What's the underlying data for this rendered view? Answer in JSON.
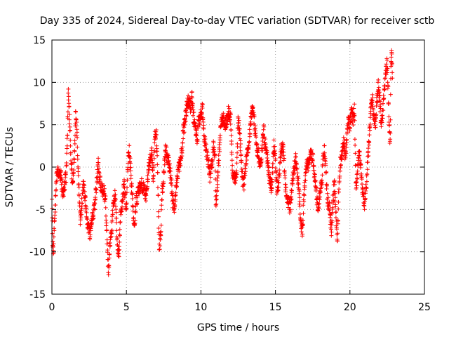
{
  "chart_data": {
    "type": "scatter",
    "title": "Day 335 of 2024, Sidereal Day-to-day VTEC variation (SDTVAR) for receiver sctb",
    "xlabel": "GPS time / hours",
    "ylabel": "SDTVAR / TECUs",
    "xlim": [
      0,
      25
    ],
    "ylim": [
      -15,
      15
    ],
    "xticks": [
      0,
      5,
      10,
      15,
      20,
      25
    ],
    "yticks": [
      -15,
      -10,
      -5,
      0,
      5,
      10,
      15
    ],
    "xtick_labels": [
      "0",
      "5",
      "10",
      "15",
      "20",
      "25"
    ],
    "ytick_labels": [
      "-15",
      "-10",
      "-5",
      "0",
      "5",
      "10",
      "15"
    ],
    "grid": true,
    "marker": "plus",
    "series": [
      {
        "name": "SDTVAR",
        "color": "#ff0000",
        "trace": [
          [
            0.0,
            -3.0
          ],
          [
            0.05,
            -9.0
          ],
          [
            0.1,
            -9.8
          ],
          [
            0.2,
            -5.5
          ],
          [
            0.3,
            -1.5
          ],
          [
            0.45,
            -0.5
          ],
          [
            0.6,
            -1.0
          ],
          [
            0.75,
            -3.5
          ],
          [
            0.85,
            -2.0
          ],
          [
            0.95,
            -1.0
          ],
          [
            1.05,
            4.5
          ],
          [
            1.1,
            8.8
          ],
          [
            1.2,
            5.0
          ],
          [
            1.3,
            0.0
          ],
          [
            1.4,
            -1.8
          ],
          [
            1.5,
            1.0
          ],
          [
            1.6,
            6.5
          ],
          [
            1.7,
            3.0
          ],
          [
            1.8,
            -2.0
          ],
          [
            1.9,
            -6.5
          ],
          [
            2.0,
            -4.5
          ],
          [
            2.1,
            -2.0
          ],
          [
            2.25,
            -4.0
          ],
          [
            2.4,
            -7.0
          ],
          [
            2.55,
            -7.8
          ],
          [
            2.7,
            -6.0
          ],
          [
            2.85,
            -5.0
          ],
          [
            3.0,
            -2.0
          ],
          [
            3.1,
            0.5
          ],
          [
            3.2,
            -1.5
          ],
          [
            3.35,
            -2.5
          ],
          [
            3.5,
            -3.0
          ],
          [
            3.6,
            -4.0
          ],
          [
            3.75,
            -11.0
          ],
          [
            3.8,
            -12.0
          ],
          [
            3.9,
            -9.0
          ],
          [
            4.0,
            -7.5
          ],
          [
            4.1,
            -5.0
          ],
          [
            4.25,
            -3.0
          ],
          [
            4.4,
            -9.5
          ],
          [
            4.5,
            -10.5
          ],
          [
            4.6,
            -6.0
          ],
          [
            4.75,
            -3.5
          ],
          [
            4.85,
            -2.0
          ],
          [
            5.0,
            -5.0
          ],
          [
            5.1,
            0.5
          ],
          [
            5.2,
            2.0
          ],
          [
            5.3,
            -1.0
          ],
          [
            5.45,
            -5.5
          ],
          [
            5.55,
            -7.0
          ],
          [
            5.65,
            -4.0
          ],
          [
            5.8,
            -3.0
          ],
          [
            6.0,
            -2.0
          ],
          [
            6.2,
            -2.5
          ],
          [
            6.3,
            -3.5
          ],
          [
            6.4,
            -1.5
          ],
          [
            6.55,
            0.5
          ],
          [
            6.7,
            1.5
          ],
          [
            6.8,
            -2.0
          ],
          [
            6.9,
            3.5
          ],
          [
            7.0,
            4.0
          ],
          [
            7.1,
            -1.0
          ],
          [
            7.2,
            -9.5
          ],
          [
            7.3,
            -8.0
          ],
          [
            7.4,
            -3.0
          ],
          [
            7.5,
            -1.0
          ],
          [
            7.6,
            2.0
          ],
          [
            7.7,
            1.5
          ],
          [
            7.85,
            0.5
          ],
          [
            8.0,
            -1.5
          ],
          [
            8.1,
            -4.0
          ],
          [
            8.2,
            -5.0
          ],
          [
            8.35,
            -2.0
          ],
          [
            8.5,
            0.0
          ],
          [
            8.6,
            0.5
          ],
          [
            8.7,
            1.5
          ],
          [
            8.8,
            4.0
          ],
          [
            8.9,
            5.0
          ],
          [
            9.0,
            6.5
          ],
          [
            9.1,
            7.5
          ],
          [
            9.2,
            8.0
          ],
          [
            9.3,
            7.0
          ],
          [
            9.4,
            8.2
          ],
          [
            9.5,
            6.0
          ],
          [
            9.6,
            4.5
          ],
          [
            9.75,
            3.5
          ],
          [
            9.85,
            5.5
          ],
          [
            10.0,
            6.0
          ],
          [
            10.1,
            7.0
          ],
          [
            10.2,
            4.0
          ],
          [
            10.3,
            2.5
          ],
          [
            10.45,
            1.0
          ],
          [
            10.6,
            -1.0
          ],
          [
            10.75,
            0.5
          ],
          [
            10.85,
            3.0
          ],
          [
            10.95,
            1.0
          ],
          [
            11.0,
            -4.5
          ],
          [
            11.1,
            -2.0
          ],
          [
            11.2,
            1.0
          ],
          [
            11.35,
            5.5
          ],
          [
            11.5,
            6.0
          ],
          [
            11.6,
            5.0
          ],
          [
            11.75,
            5.5
          ],
          [
            11.85,
            6.5
          ],
          [
            12.0,
            5.5
          ],
          [
            12.1,
            -0.5
          ],
          [
            12.25,
            -1.5
          ],
          [
            12.4,
            -0.5
          ],
          [
            12.5,
            6.0
          ],
          [
            12.6,
            4.0
          ],
          [
            12.7,
            1.0
          ],
          [
            12.8,
            -1.5
          ],
          [
            12.9,
            -2.0
          ],
          [
            13.0,
            0.5
          ],
          [
            13.1,
            1.5
          ],
          [
            13.25,
            3.5
          ],
          [
            13.4,
            6.5
          ],
          [
            13.5,
            7.0
          ],
          [
            13.6,
            5.0
          ],
          [
            13.75,
            2.5
          ],
          [
            13.9,
            1.0
          ],
          [
            14.0,
            0.0
          ],
          [
            14.1,
            2.0
          ],
          [
            14.2,
            4.5
          ],
          [
            14.3,
            3.0
          ],
          [
            14.45,
            1.0
          ],
          [
            14.6,
            -1.5
          ],
          [
            14.75,
            -2.5
          ],
          [
            14.9,
            2.5
          ],
          [
            15.0,
            1.0
          ],
          [
            15.1,
            -2.5
          ],
          [
            15.2,
            -2.0
          ],
          [
            15.35,
            1.5
          ],
          [
            15.5,
            3.0
          ],
          [
            15.6,
            0.0
          ],
          [
            15.7,
            -3.0
          ],
          [
            15.85,
            -4.0
          ],
          [
            16.0,
            -5.0
          ],
          [
            16.1,
            -2.5
          ],
          [
            16.2,
            -1.0
          ],
          [
            16.35,
            1.0
          ],
          [
            16.5,
            -1.0
          ],
          [
            16.6,
            -3.5
          ],
          [
            16.7,
            -6.5
          ],
          [
            16.8,
            -7.5
          ],
          [
            16.9,
            -4.0
          ],
          [
            17.0,
            -1.5
          ],
          [
            17.1,
            0.5
          ],
          [
            17.2,
            0.0
          ],
          [
            17.35,
            1.5
          ],
          [
            17.5,
            1.0
          ],
          [
            17.6,
            -0.5
          ],
          [
            17.75,
            -3.0
          ],
          [
            17.85,
            -5.0
          ],
          [
            18.0,
            -3.0
          ],
          [
            18.1,
            -2.0
          ],
          [
            18.2,
            1.0
          ],
          [
            18.3,
            2.0
          ],
          [
            18.4,
            -1.0
          ],
          [
            18.5,
            -4.0
          ],
          [
            18.65,
            -5.0
          ],
          [
            18.75,
            -8.0
          ],
          [
            18.85,
            -4.0
          ],
          [
            18.95,
            -2.0
          ],
          [
            19.05,
            -5.0
          ],
          [
            19.15,
            -9.0
          ],
          [
            19.25,
            -3.0
          ],
          [
            19.35,
            0.5
          ],
          [
            19.5,
            2.0
          ],
          [
            19.6,
            3.0
          ],
          [
            19.7,
            1.0
          ],
          [
            19.8,
            4.0
          ],
          [
            19.9,
            5.5
          ],
          [
            20.0,
            5.0
          ],
          [
            20.1,
            6.5
          ],
          [
            20.2,
            5.5
          ],
          [
            20.3,
            7.0
          ],
          [
            20.4,
            -2.5
          ],
          [
            20.5,
            -1.0
          ],
          [
            20.6,
            2.0
          ],
          [
            20.7,
            0.5
          ],
          [
            20.8,
            -2.0
          ],
          [
            20.9,
            -3.5
          ],
          [
            21.0,
            -4.5
          ],
          [
            21.1,
            -2.0
          ],
          [
            21.2,
            1.0
          ],
          [
            21.3,
            3.5
          ],
          [
            21.4,
            7.0
          ],
          [
            21.5,
            8.0
          ],
          [
            21.6,
            6.0
          ],
          [
            21.7,
            4.5
          ],
          [
            21.8,
            7.5
          ],
          [
            21.9,
            9.5
          ],
          [
            22.0,
            8.0
          ],
          [
            22.1,
            5.0
          ],
          [
            22.2,
            6.5
          ],
          [
            22.3,
            9.0
          ],
          [
            22.4,
            11.0
          ],
          [
            22.5,
            12.5
          ],
          [
            22.6,
            7.0
          ],
          [
            22.7,
            2.5
          ],
          [
            22.75,
            12.0
          ],
          [
            22.8,
            13.5
          ],
          [
            22.85,
            10.5
          ]
        ]
      }
    ]
  }
}
